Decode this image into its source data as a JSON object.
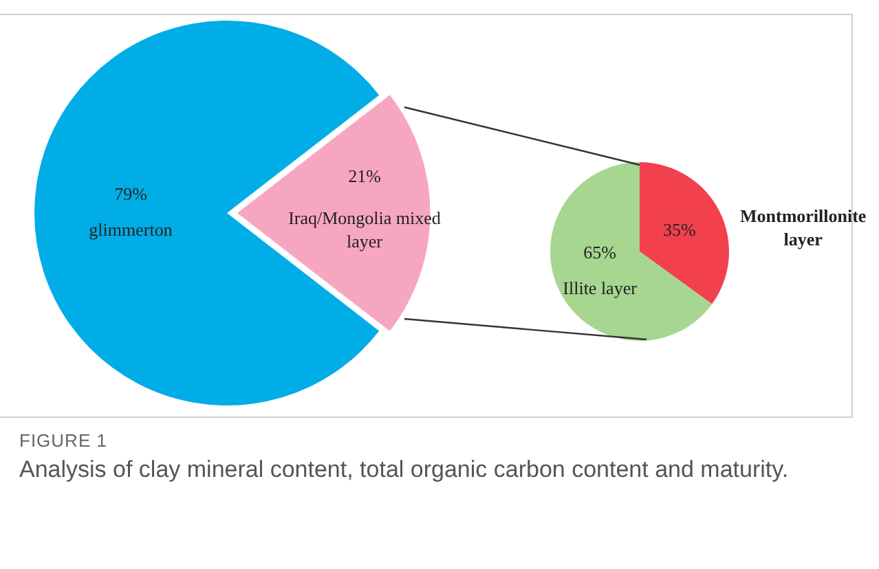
{
  "chart_data": [
    {
      "type": "pie",
      "categories": [
        "glimmerton",
        "Iraq/Mongolia mixed layer"
      ],
      "values": [
        79,
        21
      ],
      "colors": [
        "#00ade6",
        "#f7a6c0"
      ],
      "value_labels": [
        "79%",
        "21%"
      ],
      "legend": false,
      "annotations": [
        "FIGURE 1",
        "Analysis of clay mineral content, total organic carbon content and maturity."
      ]
    },
    {
      "type": "pie",
      "categories": [
        "Montmorillonite layer",
        "Illite layer"
      ],
      "values": [
        35,
        65
      ],
      "colors": [
        "#f2404f",
        "#a6d68f"
      ],
      "value_labels": [
        "35%",
        "65%"
      ],
      "legend": false
    }
  ]
}
